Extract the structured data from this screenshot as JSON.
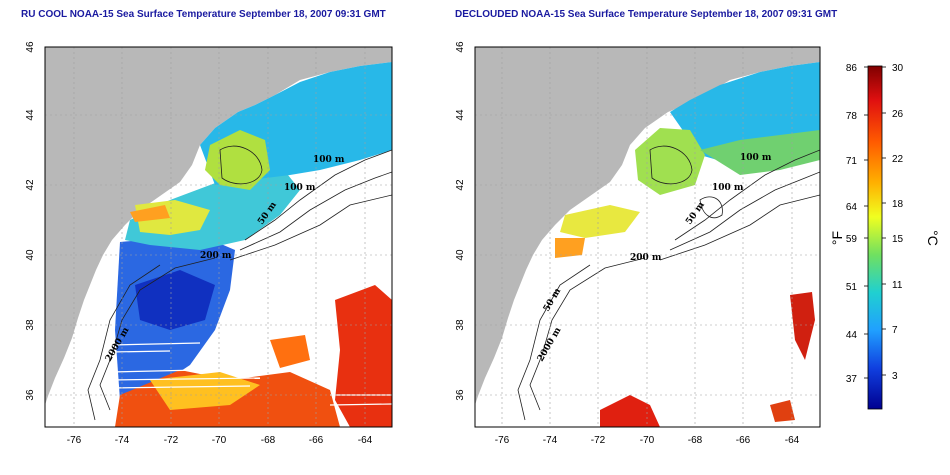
{
  "maps": [
    {
      "title": "RU COOL NOAA-15 Sea Surface Temperature September 18, 2007 09:31 GMT",
      "x_ticks": [
        "-76",
        "-74",
        "-72",
        "-70",
        "-68",
        "-66",
        "-64"
      ],
      "y_ticks": [
        "46",
        "44",
        "42",
        "40",
        "38",
        "36"
      ],
      "contour_labels": [
        "100 m",
        "100 m",
        "50 m",
        "200 m",
        "2000 m"
      ]
    },
    {
      "title": "DECLOUDED NOAA-15 Sea Surface Temperature September 18, 2007 09:31 GMT",
      "x_ticks": [
        "-76",
        "-74",
        "-72",
        "-70",
        "-68",
        "-66",
        "-64"
      ],
      "y_ticks": [
        "46",
        "44",
        "42",
        "40",
        "38",
        "36"
      ],
      "contour_labels": [
        "100 m",
        "100 m",
        "50 m",
        "200 m",
        "50 m",
        "2000 m"
      ]
    }
  ],
  "colorbar": {
    "fahrenheit_ticks": [
      "86",
      "78",
      "71",
      "64",
      "59",
      "51",
      "44",
      "37"
    ],
    "celsius_ticks": [
      "30",
      "26",
      "22",
      "18",
      "15",
      "11",
      "7",
      "3"
    ],
    "fahrenheit_unit": "°F",
    "celsius_unit": "°C",
    "colors": [
      "#800000",
      "#e01010",
      "#ff5a00",
      "#ffb000",
      "#f0ff20",
      "#70e060",
      "#20d0d0",
      "#20a0ff",
      "#1040e0",
      "#000090"
    ]
  },
  "colors": {
    "land": "#b8b8b8",
    "ocean_no_data": "#ffffff",
    "title": "#1a1aa0",
    "grid": "#a0a0a0"
  }
}
